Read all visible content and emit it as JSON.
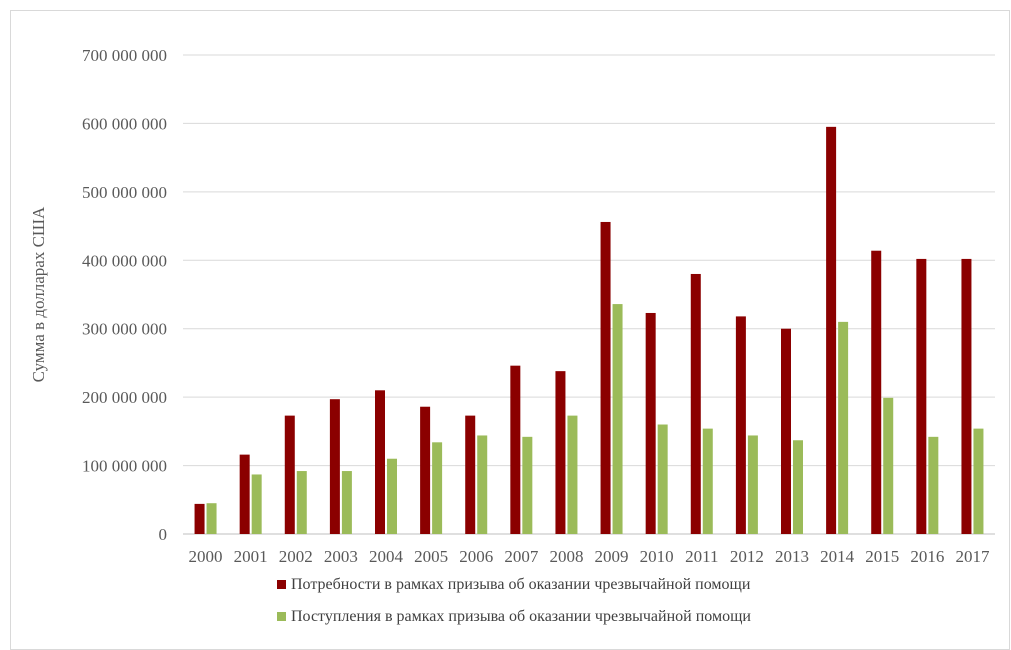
{
  "chart_data": {
    "type": "bar",
    "title": "",
    "xlabel": "",
    "ylabel": "Сумма в долларах США",
    "ylim": [
      0,
      700000000
    ],
    "yticks": [
      0,
      100000000,
      200000000,
      300000000,
      400000000,
      500000000,
      600000000,
      700000000
    ],
    "ytick_labels": [
      "0",
      "100 000 000",
      "200 000 000",
      "300 000 000",
      "400 000 000",
      "500 000 000",
      "600 000 000",
      "700 000 000"
    ],
    "grid": true,
    "legend_position": "bottom",
    "categories": [
      "2000",
      "2001",
      "2002",
      "2003",
      "2004",
      "2005",
      "2006",
      "2007",
      "2008",
      "2009",
      "2010",
      "2011",
      "2012",
      "2013",
      "2014",
      "2015",
      "2016",
      "2017"
    ],
    "series": [
      {
        "name": "Потребности в рамках призыва об оказании чрезвычайной помощи",
        "color": "#8b0000",
        "values": [
          44000000,
          116000000,
          173000000,
          197000000,
          210000000,
          186000000,
          173000000,
          246000000,
          238000000,
          456000000,
          323000000,
          380000000,
          318000000,
          300000000,
          595000000,
          414000000,
          402000000,
          402000000
        ]
      },
      {
        "name": "Поступления в рамках призыва об оказании чрезвычайной помощи",
        "color": "#9bbb59",
        "values": [
          45000000,
          87000000,
          92000000,
          92000000,
          110000000,
          134000000,
          144000000,
          142000000,
          173000000,
          336000000,
          160000000,
          154000000,
          144000000,
          137000000,
          310000000,
          199000000,
          142000000,
          154000000
        ]
      }
    ]
  }
}
